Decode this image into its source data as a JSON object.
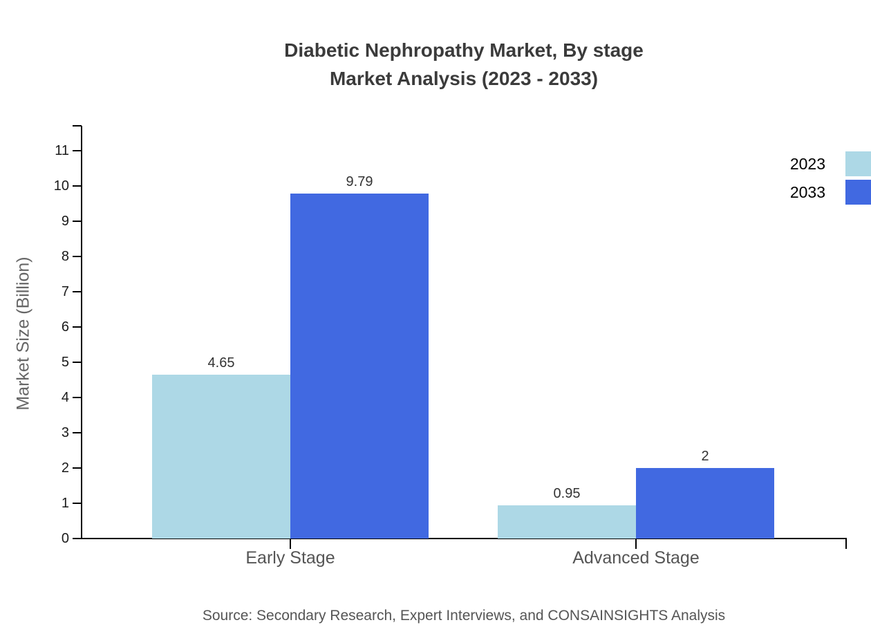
{
  "title": {
    "line1": "Diabetic Nephropathy Market, By stage",
    "line2": "Market Analysis (2023 - 2033)"
  },
  "source": "Source: Secondary Research, Expert Interviews, and CONSAINSIGHTS Analysis",
  "colors": {
    "series_2023": "#ADD8E6",
    "series_2033": "#4169E1",
    "axis": "#000000",
    "title_text": "#3b3b3b",
    "muted_text": "#555555"
  },
  "chart_data": {
    "type": "bar",
    "title": "Diabetic Nephropathy Market, By stage Market Analysis (2023 - 2033)",
    "categories": [
      "Early Stage",
      "Advanced Stage"
    ],
    "series": [
      {
        "name": "2023",
        "color": "#ADD8E6",
        "values": [
          4.65,
          0.95
        ],
        "labels": [
          "4.65",
          "0.95"
        ]
      },
      {
        "name": "2033",
        "color": "#4169E1",
        "values": [
          9.79,
          2
        ],
        "labels": [
          "9.79",
          "2"
        ]
      }
    ],
    "xlabel": "",
    "ylabel": "Market Size (Billion)",
    "ylim": [
      0,
      11
    ],
    "yticks": [
      0,
      1,
      2,
      3,
      4,
      5,
      6,
      7,
      8,
      9,
      10,
      11
    ],
    "grid": false,
    "legend_position": "top-right"
  }
}
